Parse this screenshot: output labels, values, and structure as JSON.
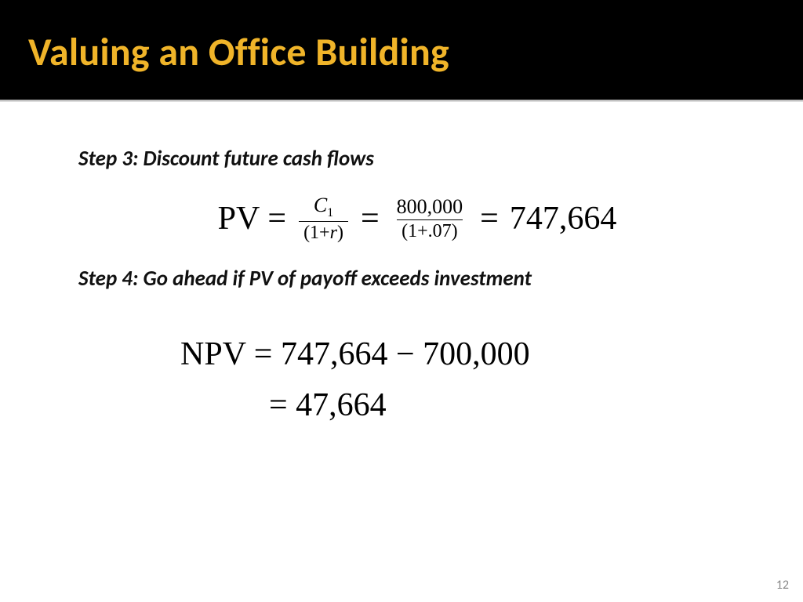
{
  "slide": {
    "title": "Valuing an Office Building",
    "title_color": "#f0b429",
    "title_bg": "#000000",
    "page_number": "12"
  },
  "steps": {
    "step3_label": "Step 3:  Discount future cash flows",
    "step4_label": "Step 4:  Go ahead if PV of payoff exceeds investment"
  },
  "pv_equation": {
    "lhs": "PV",
    "eq_sign": "=",
    "frac1_num": "C",
    "frac1_num_sub": "1",
    "frac1_den": "(1+r)",
    "frac2_num": "800,000",
    "frac2_den": "(1+.07)",
    "result": "747,664",
    "fontsize_big": 42,
    "fontsize_frac_num": 26,
    "fontsize_frac_den": 24,
    "text_color": "#000000"
  },
  "npv_equation": {
    "line1": "NPV = 747,664 − 700,000",
    "line2": "= 47,664",
    "fontsize": 42,
    "text_color": "#000000"
  },
  "styling": {
    "body_bg": "#ffffff",
    "step_font": "Calibri italic bold 27px",
    "math_font": "Times New Roman",
    "divider_colors": [
      "#666666",
      "#bbbbbb",
      "#eeeeee"
    ],
    "page_num_color": "#888888"
  }
}
